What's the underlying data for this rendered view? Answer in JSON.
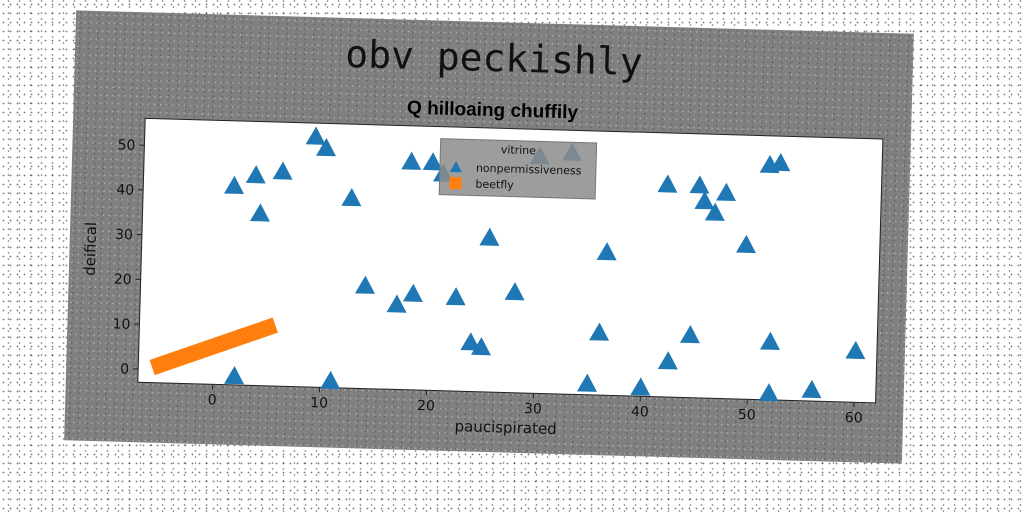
{
  "chart_data": {
    "type": "scatter",
    "title": "obv peckishly",
    "subtitle": "Q hilloaing chuffily",
    "xlabel": "paucispirated",
    "ylabel": "deifical",
    "xlim": [
      -7,
      62
    ],
    "ylim": [
      -3,
      56
    ],
    "x_ticks": [
      0,
      10,
      20,
      30,
      40,
      50,
      60
    ],
    "y_ticks": [
      0,
      10,
      20,
      30,
      40,
      50
    ],
    "grid": false,
    "legend": {
      "title": "vitrine",
      "placement": "top-center"
    },
    "series": [
      {
        "name": "nonpermissiveness",
        "marker": "triangle",
        "color": "#1f77b4",
        "points": [
          [
            1.5,
            41.5
          ],
          [
            3.5,
            44
          ],
          [
            4,
            35.5
          ],
          [
            6,
            45
          ],
          [
            9,
            53
          ],
          [
            10,
            50.5
          ],
          [
            12.5,
            39.5
          ],
          [
            14,
            20
          ],
          [
            17,
            16
          ],
          [
            18,
            48
          ],
          [
            18.5,
            18.5
          ],
          [
            20,
            48
          ],
          [
            21,
            45.5
          ],
          [
            22.5,
            18
          ],
          [
            24,
            8
          ],
          [
            25,
            7
          ],
          [
            25.5,
            31.5
          ],
          [
            28,
            19.5
          ],
          [
            30,
            50
          ],
          [
            33,
            51
          ],
          [
            35,
            -0.5
          ],
          [
            36,
            11
          ],
          [
            36.5,
            29
          ],
          [
            40,
            -1
          ],
          [
            42,
            44.5
          ],
          [
            42.5,
            5
          ],
          [
            44.5,
            11
          ],
          [
            45,
            44.5
          ],
          [
            45.5,
            41
          ],
          [
            46.5,
            38.5
          ],
          [
            47.5,
            43
          ],
          [
            49.5,
            31.5
          ],
          [
            51.5,
            49.5
          ],
          [
            52,
            10
          ],
          [
            52,
            -1.5
          ],
          [
            52.5,
            50
          ],
          [
            56,
            -0.5
          ],
          [
            60,
            8.5
          ],
          [
            2,
            -1
          ],
          [
            11,
            -1.5
          ]
        ]
      },
      {
        "name": "beetfly",
        "marker": "square",
        "color": "#ff7f0e",
        "line": {
          "x": [
            -5,
            5
          ],
          "y": [
            1,
            10
          ]
        }
      }
    ]
  }
}
